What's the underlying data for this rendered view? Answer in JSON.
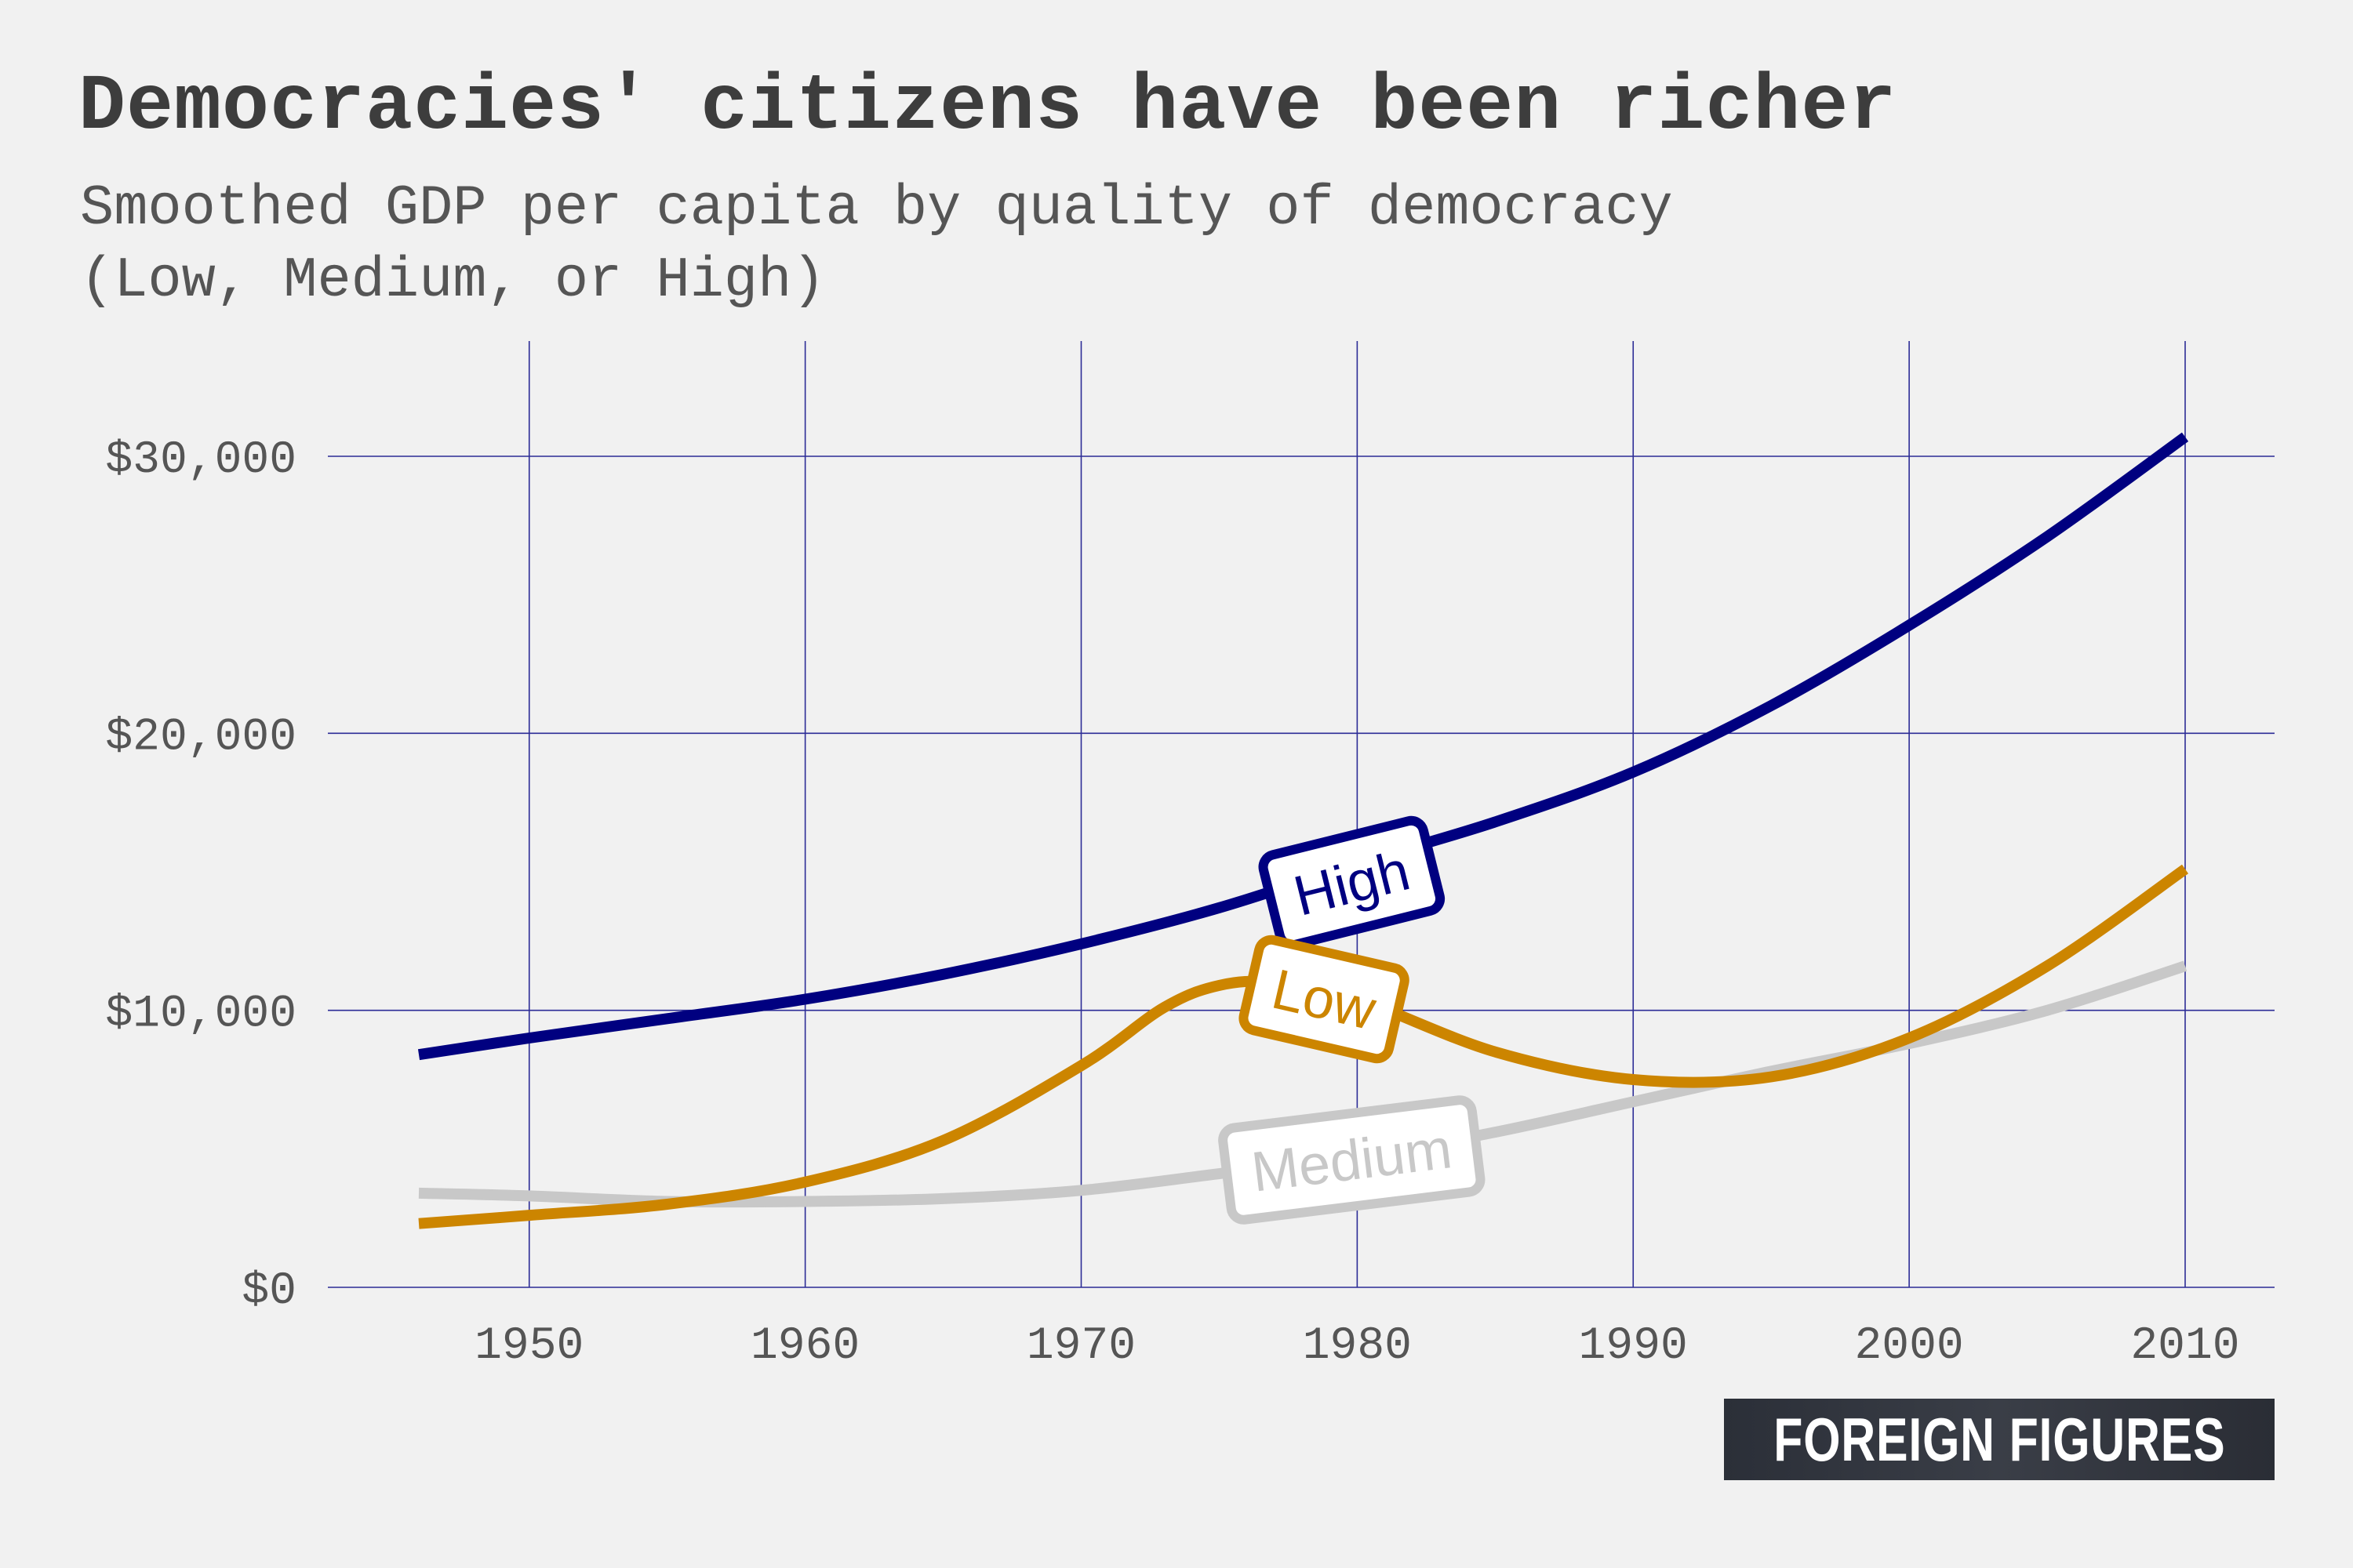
{
  "chart_data": {
    "type": "line",
    "title": "Democracies' citizens have been richer",
    "subtitle": [
      "Smoothed GDP per capita by quality of democracy",
      "(Low, Medium, or High)"
    ],
    "xlabel": "",
    "ylabel": "",
    "xlim": [
      1943,
      2013
    ],
    "ylim": [
      0,
      34000
    ],
    "x_ticks": [
      1950,
      1960,
      1970,
      1980,
      1990,
      2000,
      2010
    ],
    "x_tick_labels": [
      "1950",
      "1960",
      "1970",
      "1980",
      "1990",
      "2000",
      "2010"
    ],
    "y_ticks": [
      0,
      10000,
      20000,
      30000
    ],
    "y_tick_labels": [
      "$0",
      "$10,000",
      "$20,000",
      "$30,000"
    ],
    "grid": true,
    "legend": "inline labels on lines",
    "series": [
      {
        "name": "High",
        "color": "#000080",
        "x": [
          1946,
          1950,
          1955,
          1960,
          1965,
          1970,
          1975,
          1980,
          1985,
          1990,
          1995,
          2000,
          2005,
          2010
        ],
        "y": [
          8400,
          9000,
          9700,
          10400,
          11300,
          12400,
          13700,
          15300,
          16800,
          18600,
          21000,
          23900,
          27100,
          30700
        ]
      },
      {
        "name": "Low",
        "color": "#cc8500",
        "x": [
          1946,
          1950,
          1955,
          1960,
          1965,
          1970,
          1973,
          1975,
          1977,
          1980,
          1985,
          1990,
          1995,
          2000,
          2005,
          2010
        ],
        "y": [
          2300,
          2600,
          3000,
          3800,
          5300,
          8000,
          10100,
          10900,
          11000,
          10400,
          8500,
          7500,
          7600,
          9000,
          11600,
          15100
        ]
      },
      {
        "name": "Medium",
        "color": "#c8c8c8",
        "x": [
          1946,
          1950,
          1955,
          1960,
          1965,
          1970,
          1975,
          1980,
          1985,
          1990,
          1995,
          2000,
          2005,
          2010
        ],
        "y": [
          3400,
          3300,
          3100,
          3100,
          3200,
          3500,
          4100,
          4700,
          5600,
          6700,
          7800,
          8800,
          10000,
          11600
        ]
      }
    ],
    "label_boxes": [
      {
        "series": "High",
        "x": 1979.8,
        "y": 14600,
        "rotate": -14,
        "fill": "#ffffff",
        "stroke": "#000080",
        "text_color": "#000080"
      },
      {
        "series": "Low",
        "x": 1978.8,
        "y": 10400,
        "rotate": 13,
        "fill": "#ffffff",
        "stroke": "#cc8500",
        "text_color": "#cc8500"
      },
      {
        "series": "Medium",
        "x": 1979.8,
        "y": 4600,
        "rotate": -7,
        "fill": "#ffffff",
        "stroke": "#c8c8c8",
        "text_color": "#c8c8c8"
      }
    ],
    "grid_color": "#2c2c96"
  },
  "brand": {
    "text": "FOREIGN FIGURES"
  }
}
